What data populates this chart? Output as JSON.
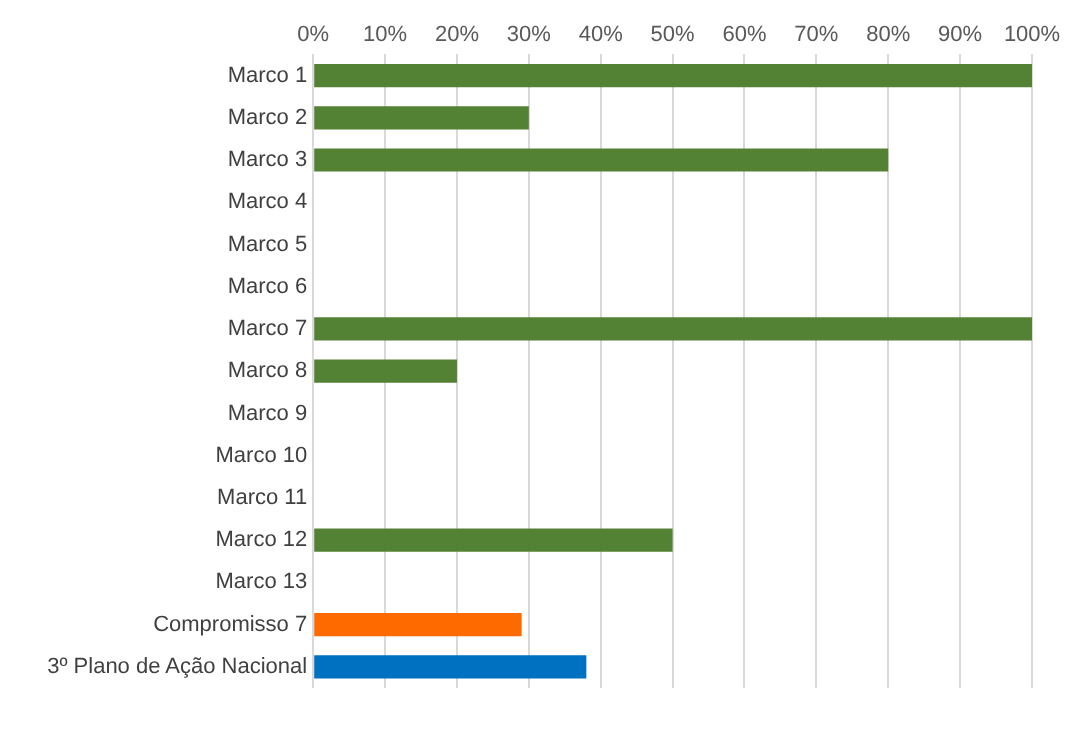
{
  "chart_data": {
    "type": "bar",
    "orientation": "horizontal",
    "categories": [
      "Marco 1",
      "Marco 2",
      "Marco 3",
      "Marco 4",
      "Marco 5",
      "Marco 6",
      "Marco 7",
      "Marco 8",
      "Marco 9",
      "Marco 10",
      "Marco 11",
      "Marco 12",
      "Marco 13",
      "Compromisso 7",
      "3º Plano de Ação Nacional"
    ],
    "values": [
      100,
      30,
      80,
      0,
      0,
      0,
      100,
      20,
      0,
      0,
      0,
      50,
      0,
      29,
      38
    ],
    "colors": [
      "#548235",
      "#548235",
      "#548235",
      "#548235",
      "#548235",
      "#548235",
      "#548235",
      "#548235",
      "#548235",
      "#548235",
      "#548235",
      "#548235",
      "#548235",
      "#ff6a00",
      "#0070c0"
    ],
    "xlim": [
      0,
      100
    ],
    "xticks": [
      {
        "value": 0,
        "label": "0%"
      },
      {
        "value": 10,
        "label": "10%"
      },
      {
        "value": 20,
        "label": "20%"
      },
      {
        "value": 30,
        "label": "30%"
      },
      {
        "value": 40,
        "label": "40%"
      },
      {
        "value": 50,
        "label": "50%"
      },
      {
        "value": 60,
        "label": "60%"
      },
      {
        "value": 70,
        "label": "70%"
      },
      {
        "value": 80,
        "label": "80%"
      },
      {
        "value": 90,
        "label": "90%"
      },
      {
        "value": 100,
        "label": "100%"
      }
    ],
    "grid": "x",
    "legend": false
  }
}
